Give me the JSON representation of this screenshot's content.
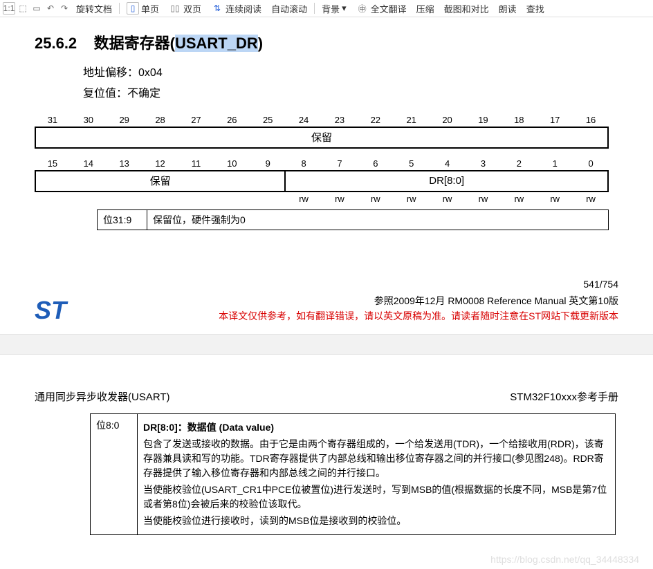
{
  "toolbar": {
    "rotate": "旋转文档",
    "single": "单页",
    "double": "双页",
    "cont": "连续阅读",
    "autoscroll": "自动滚动",
    "bg": "背景",
    "fulltrans": "全文翻译",
    "compress": "压缩",
    "crop": "截图和对比",
    "read": "朗读",
    "find": "查找"
  },
  "section": {
    "num": "25.6.2",
    "title_pre": "数据寄存器(",
    "title_sel": "USART_DR",
    "title_post": ")",
    "addr_label": "地址偏移：",
    "addr_val": "0x04",
    "reset_label": "复位值：",
    "reset_val": "不确定"
  },
  "bits_hi": [
    "31",
    "30",
    "29",
    "28",
    "27",
    "26",
    "25",
    "24",
    "23",
    "22",
    "21",
    "20",
    "19",
    "18",
    "17",
    "16"
  ],
  "bits_lo": [
    "15",
    "14",
    "13",
    "12",
    "11",
    "10",
    "9",
    "8",
    "7",
    "6",
    "5",
    "4",
    "3",
    "2",
    "1",
    "0"
  ],
  "reg_hi": "保留",
  "reg_lo_left": "保留",
  "reg_lo_right": "DR[8:0]",
  "rw": [
    "",
    "",
    "",
    "",
    "",
    "",
    "",
    "rw",
    "rw",
    "rw",
    "rw",
    "rw",
    "rw",
    "rw",
    "rw",
    "rw"
  ],
  "desc1": {
    "bits": "位31:9",
    "text": "保留位，硬件强制为0"
  },
  "footer": {
    "page": "541/754",
    "ref": "参照2009年12月 RM0008 Reference Manual  英文第10版",
    "red": "本译文仅供参考，如有翻译错误，请以英文原稿为准。请读者随时注意在ST网站下载更新版本"
  },
  "page2": {
    "left": "通用同步异步收发器(USART)",
    "right": "STM32F10xxx参考手册",
    "bits": "位8:0",
    "l1": "DR[8:0]：数据值 (Data value)",
    "l2": "包含了发送或接收的数据。由于它是由两个寄存器组成的，一个给发送用(TDR)，一个给接收用(RDR)，该寄存器兼具读和写的功能。TDR寄存器提供了内部总线和输出移位寄存器之间的并行接口(参见图248)。RDR寄存器提供了输入移位寄存器和内部总线之间的并行接口。",
    "l3": "当使能校验位(USART_CR1中PCE位被置位)进行发送时，写到MSB的值(根据数据的长度不同，MSB是第7位或者第8位)会被后来的校验位该取代。",
    "l4": "当使能校验位进行接收时，读到的MSB位是接收到的校验位。"
  },
  "watermark": "https://blog.csdn.net/qq_34448334"
}
